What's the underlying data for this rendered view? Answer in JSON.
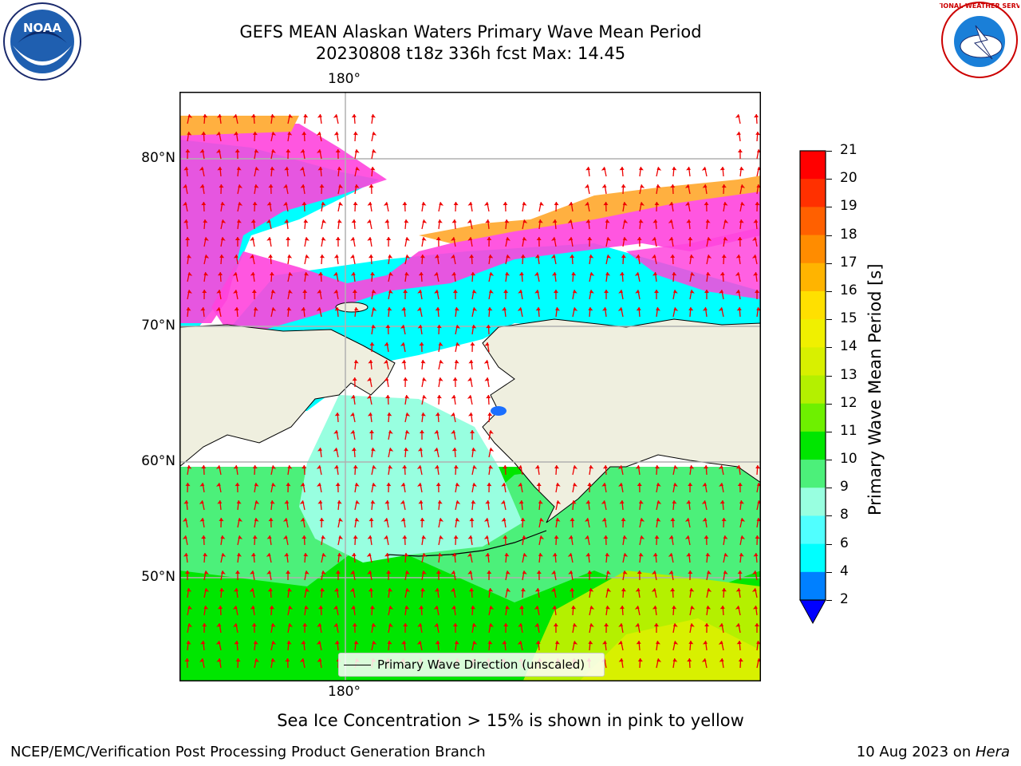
{
  "title_line1": "GEFS MEAN Alaskan Waters Primary Wave Mean Period",
  "title_line2": "20230808 t18z 336h fcst   Max: 14.45",
  "lon_label_top": "180°",
  "lon_label_bottom": "180°",
  "lat_labels": [
    "80°N",
    "70°N",
    "60°N",
    "50°N"
  ],
  "colorbar": {
    "label": "Primary Wave Mean Period [s]",
    "ticks": [
      "21",
      "20",
      "19",
      "18",
      "17",
      "16",
      "15",
      "14",
      "13",
      "12",
      "11",
      "10",
      "9",
      "8",
      "6",
      "4",
      "2"
    ],
    "colors": [
      "#ff0000",
      "#ff3000",
      "#ff6000",
      "#ff8c00",
      "#ffb400",
      "#ffe000",
      "#f0f000",
      "#d8f000",
      "#b4f000",
      "#6ef000",
      "#00e600",
      "#4cf07a",
      "#98ffe0",
      "#50ffff",
      "#00ffff",
      "#0080ff",
      "#0000ff"
    ]
  },
  "legend_text": "Primary Wave Direction (unscaled)",
  "caption": "Sea Ice Concentration > 15% is shown in pink to yellow",
  "footer_left": "NCEP/EMC/Verification Post Processing Product Generation Branch",
  "footer_right_date": "10 Aug 2023 on ",
  "footer_right_host": "Hera",
  "logos": {
    "left": "NOAA",
    "right": "NATIONAL WEATHER SERVICE"
  },
  "colors": {
    "land": "#efefdf",
    "ice_pink": "#ff44dd",
    "ice_orange": "#ffb040",
    "open_water_cyan": "#00ffff",
    "arrow": "#ee0000"
  }
}
